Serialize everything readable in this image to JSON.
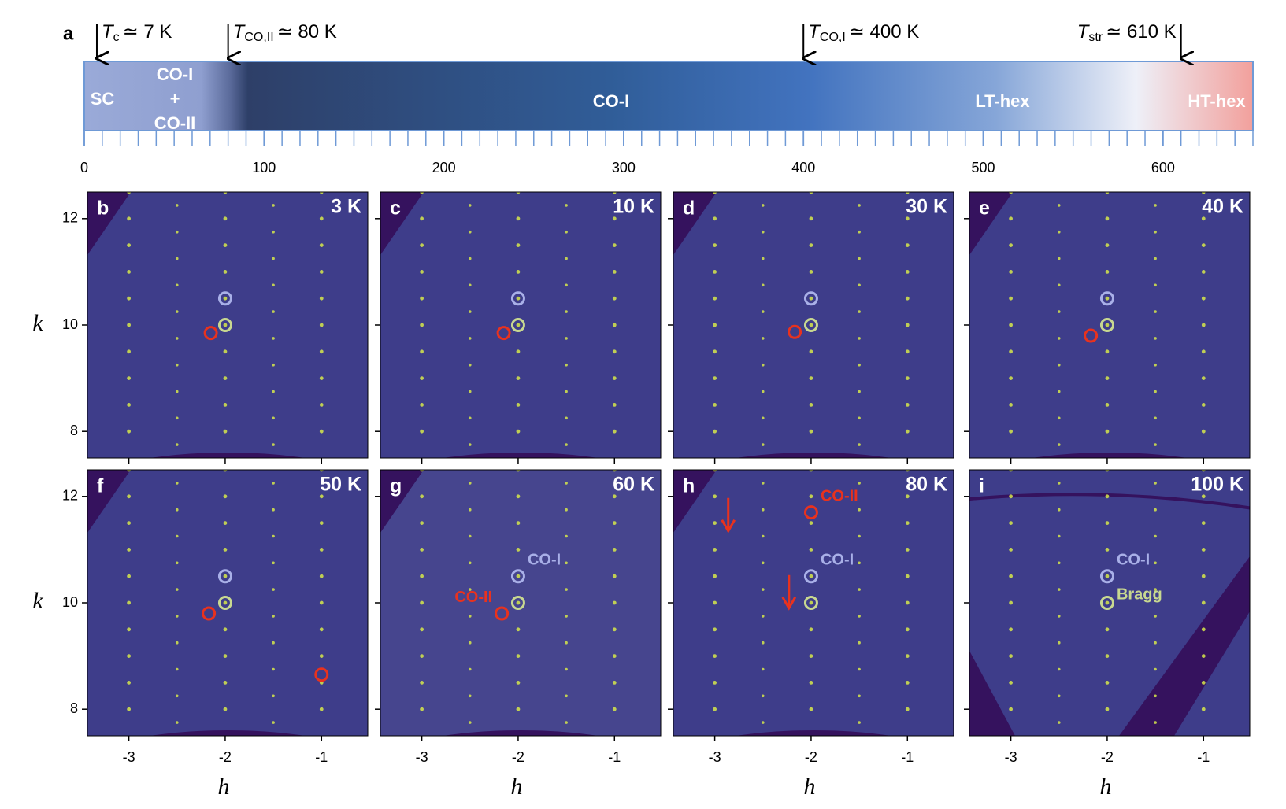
{
  "timeline": {
    "label": "a",
    "xlim": [
      0,
      650
    ],
    "ticks": [
      0,
      100,
      200,
      300,
      400,
      500,
      600
    ],
    "minor_tick_step": 10,
    "phases": [
      {
        "label": [
          "SC"
        ]
      },
      {
        "label": [
          "CO-I",
          "+",
          "CO-II"
        ]
      },
      {
        "label": [
          "CO-I"
        ]
      },
      {
        "label": [
          "LT-hex"
        ]
      },
      {
        "label": [
          "HT-hex"
        ]
      }
    ],
    "transitions": [
      {
        "symbol": "T",
        "sub": "c",
        "text": "≃ 7 K",
        "value": 7
      },
      {
        "symbol": "T",
        "sub": "CO,II",
        "text": "≃ 80 K",
        "value": 80
      },
      {
        "symbol": "T",
        "sub": "CO,I",
        "text": "≃ 400 K",
        "value": 400
      },
      {
        "symbol": "T",
        "sub": "str",
        "text": "≃ 610 K",
        "value": 610
      }
    ]
  },
  "maps": {
    "xlim": [
      -3.43,
      -0.52
    ],
    "ylim": [
      7.5,
      12.5
    ],
    "h_ticks": [
      -3,
      -2,
      -1
    ],
    "k_ticks": [
      8,
      10,
      12
    ],
    "x_label": "h",
    "y_label": "k",
    "panels": [
      {
        "label": "b",
        "temperature": "3 K",
        "circles": [
          {
            "h": -2,
            "k": 10.5,
            "color": "#a9b0e8"
          },
          {
            "h": -2,
            "k": 10,
            "color": "#c8d890"
          },
          {
            "h": -2.15,
            "k": 9.85,
            "color": "#e8321e"
          }
        ]
      },
      {
        "label": "c",
        "temperature": "10 K",
        "circles": [
          {
            "h": -2,
            "k": 10.5,
            "color": "#a9b0e8"
          },
          {
            "h": -2,
            "k": 10,
            "color": "#c8d890"
          },
          {
            "h": -2.15,
            "k": 9.85,
            "color": "#e8321e"
          }
        ]
      },
      {
        "label": "d",
        "temperature": "30 K",
        "circles": [
          {
            "h": -2,
            "k": 10.5,
            "color": "#a9b0e8"
          },
          {
            "h": -2,
            "k": 10,
            "color": "#c8d890"
          },
          {
            "h": -2.17,
            "k": 9.87,
            "color": "#e8321e"
          }
        ]
      },
      {
        "label": "e",
        "temperature": "40 K",
        "circles": [
          {
            "h": -2,
            "k": 10.5,
            "color": "#a9b0e8"
          },
          {
            "h": -2,
            "k": 10,
            "color": "#c8d890"
          },
          {
            "h": -2.17,
            "k": 9.8,
            "color": "#e8321e"
          }
        ]
      },
      {
        "label": "f",
        "temperature": "50 K",
        "circles": [
          {
            "h": -2,
            "k": 10.5,
            "color": "#a9b0e8"
          },
          {
            "h": -2,
            "k": 10,
            "color": "#c8d890"
          },
          {
            "h": -2.17,
            "k": 9.8,
            "color": "#e8321e"
          },
          {
            "h": -1,
            "k": 8.65,
            "color": "#e8321e"
          }
        ]
      },
      {
        "label": "g",
        "temperature": "60 K",
        "circles": [
          {
            "h": -2,
            "k": 10.5,
            "color": "#a9b0e8",
            "label": "CO-I"
          },
          {
            "h": -2,
            "k": 10,
            "color": "#c8d890"
          },
          {
            "h": -2.17,
            "k": 9.8,
            "color": "#e8321e",
            "label": "CO-II"
          }
        ]
      },
      {
        "label": "h",
        "temperature": "80 K",
        "circles": [
          {
            "h": -2,
            "k": 11.7,
            "color": "#e8321e",
            "label": "CO-II"
          },
          {
            "h": -2,
            "k": 10.5,
            "color": "#a9b0e8",
            "label": "CO-I"
          },
          {
            "h": -2,
            "k": 10,
            "color": "#c8d890"
          }
        ],
        "arrows": [
          {
            "h": -2.86,
            "k": 11.35
          },
          {
            "h": -2.23,
            "k": 9.9
          }
        ]
      },
      {
        "label": "i",
        "temperature": "100 K",
        "circles": [
          {
            "h": -2,
            "k": 10.5,
            "color": "#a9b0e8",
            "label": "CO-I"
          },
          {
            "h": -2,
            "k": 10,
            "color": "#c8d890",
            "label": "Bragg"
          }
        ]
      }
    ]
  }
}
